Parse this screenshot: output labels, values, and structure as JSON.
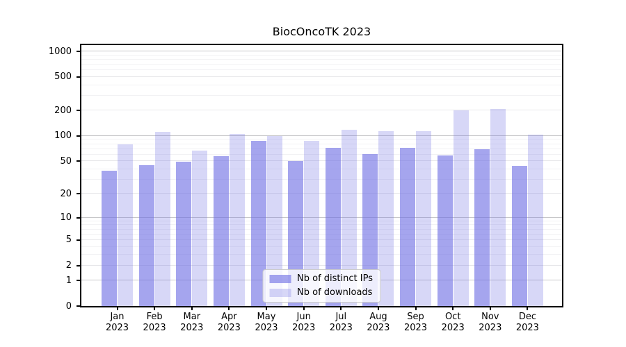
{
  "chart_data": {
    "type": "bar",
    "title": "BiocOncoTK 2023",
    "categories": [
      "Jan",
      "Feb",
      "Mar",
      "Apr",
      "May",
      "Jun",
      "Jul",
      "Aug",
      "Sep",
      "Oct",
      "Nov",
      "Dec"
    ],
    "category_sublabel": "2023",
    "series": [
      {
        "name": "Nb of distinct IPs",
        "color": "#6e6ee4",
        "alpha": 0.62,
        "values": [
          38,
          45,
          49,
          57,
          87,
          50,
          72,
          61,
          72,
          58,
          70,
          44
        ]
      },
      {
        "name": "Nb of downloads",
        "color": "#6e6ee4",
        "alpha": 0.28,
        "values": [
          80,
          112,
          67,
          105,
          100,
          88,
          118,
          114,
          115,
          200,
          210,
          104
        ]
      }
    ],
    "yscale": "log1p",
    "yticks": [
      0,
      1,
      2,
      5,
      10,
      20,
      50,
      100,
      200,
      500,
      1000
    ],
    "yminorticks": [
      3,
      4,
      6,
      7,
      8,
      9,
      30,
      40,
      60,
      70,
      80,
      90,
      300,
      400,
      600,
      700,
      800,
      900
    ],
    "ylim": [
      0,
      1230
    ],
    "xlabel": "",
    "ylabel": "",
    "grid": true,
    "legend_position": "lower center"
  }
}
